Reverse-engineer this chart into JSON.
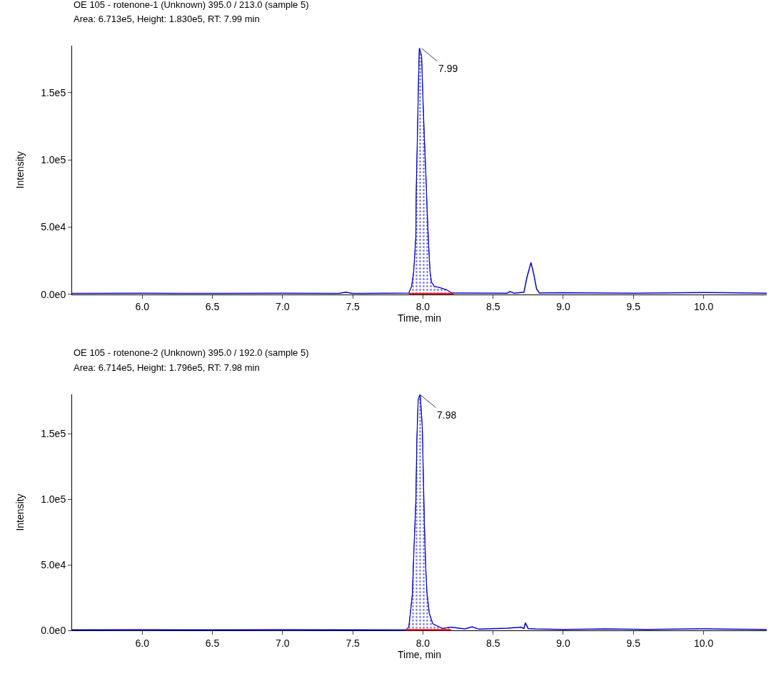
{
  "chart_data": [
    {
      "type": "line",
      "title": "OE 105 - rotenone-1 (Unknown) 395.0 / 213.0 (sample 5)",
      "subtitle": "Area: 6.713e5, Height: 1.830e5, RT: 7.99 min",
      "xlabel": "Time, min",
      "ylabel": "Intensity",
      "xlim": [
        5.5,
        10.45
      ],
      "ylim": [
        0,
        185000
      ],
      "xticks": [
        {
          "value": 6,
          "label": "6.0"
        },
        {
          "value": 6.5,
          "label": "6.5"
        },
        {
          "value": 7,
          "label": "7.0"
        },
        {
          "value": 7.5,
          "label": "7.5"
        },
        {
          "value": 8,
          "label": "8.0"
        },
        {
          "value": 8.5,
          "label": "8.5"
        },
        {
          "value": 9,
          "label": "9.0"
        },
        {
          "value": 9.5,
          "label": "9.5"
        },
        {
          "value": 10,
          "label": "10.0"
        }
      ],
      "yticks": [
        {
          "value": 0,
          "label": "0.0e0"
        },
        {
          "value": 50000,
          "label": "5.0e4"
        },
        {
          "value": 100000,
          "label": "1.0e5"
        },
        {
          "value": 150000,
          "label": "1.5e5"
        }
      ],
      "series": [
        {
          "color": "#0000cc",
          "x": [
            5.5,
            6.0,
            6.5,
            7.0,
            7.4,
            7.45,
            7.5,
            7.9,
            7.92,
            7.935,
            7.95,
            7.953,
            7.962,
            7.97,
            7.975,
            7.99,
            8.0,
            8.01,
            8.02,
            8.03,
            8.04,
            8.05,
            8.06,
            8.08,
            8.12,
            8.17,
            8.2,
            8.23,
            8.3,
            8.6,
            8.62,
            8.65,
            8.72,
            8.74,
            8.77,
            8.79,
            8.81,
            8.83,
            9.0,
            9.5,
            10.0,
            10.45
          ],
          "values": [
            600,
            700,
            600,
            700,
            600,
            1500,
            600,
            900,
            5800,
            16800,
            42300,
            76500,
            120000,
            163000,
            183000,
            177000,
            144000,
            115000,
            90000,
            61000,
            37000,
            16800,
            9200,
            5800,
            4900,
            3200,
            1200,
            900,
            900,
            800,
            2000,
            800,
            1500,
            12000,
            23600,
            15000,
            4000,
            900,
            1200,
            800,
            1300,
            800
          ]
        },
        {
          "type": "area",
          "color": "#0000cc",
          "x": [
            7.9,
            7.92,
            7.935,
            7.95,
            7.953,
            7.962,
            7.97,
            7.975,
            7.99,
            8.0,
            8.01,
            8.02,
            8.03,
            8.04,
            8.05,
            8.06,
            8.08,
            8.12,
            8.17,
            8.2,
            8.22
          ],
          "values": [
            900,
            5800,
            16800,
            42300,
            76500,
            120000,
            163000,
            183000,
            177000,
            144000,
            115000,
            90000,
            61000,
            37000,
            16800,
            9200,
            5800,
            4900,
            3200,
            1200,
            900
          ]
        },
        {
          "color": "#ff0000",
          "x": [
            7.9,
            8.06,
            8.22
          ],
          "values": [
            0,
            0,
            0
          ]
        }
      ],
      "annotations": [
        {
          "text": "7.99",
          "x": 7.99,
          "y": 183000
        }
      ]
    },
    {
      "type": "line",
      "title": "OE 105 - rotenone-2 (Unknown) 395.0 / 192.0 (sample 5)",
      "subtitle": "Area: 6.714e5, Height: 1.796e5, RT: 7.98 min",
      "xlabel": "Time, min",
      "ylabel": "Intensity",
      "xlim": [
        5.5,
        10.45
      ],
      "ylim": [
        0,
        180000
      ],
      "xticks": [
        {
          "value": 6,
          "label": "6.0"
        },
        {
          "value": 6.5,
          "label": "6.5"
        },
        {
          "value": 7,
          "label": "7.0"
        },
        {
          "value": 7.5,
          "label": "7.5"
        },
        {
          "value": 8,
          "label": "8.0"
        },
        {
          "value": 8.5,
          "label": "8.5"
        },
        {
          "value": 9,
          "label": "9.0"
        },
        {
          "value": 9.5,
          "label": "9.5"
        },
        {
          "value": 10,
          "label": "10.0"
        }
      ],
      "yticks": [
        {
          "value": 0,
          "label": "0.0e0"
        },
        {
          "value": 50000,
          "label": "5.0e4"
        },
        {
          "value": 100000,
          "label": "1.0e5"
        },
        {
          "value": 150000,
          "label": "1.5e5"
        }
      ],
      "series": [
        {
          "color": "#0000cc",
          "x": [
            5.5,
            6.0,
            6.5,
            7.0,
            7.5,
            7.88,
            7.9,
            7.925,
            7.938,
            7.95,
            7.958,
            7.967,
            7.98,
            7.995,
            8.002,
            8.01,
            8.019,
            8.028,
            8.045,
            8.07,
            8.12,
            8.14,
            8.2,
            8.3,
            8.35,
            8.4,
            8.6,
            8.7,
            8.72,
            8.73,
            8.75,
            8.8,
            9.0,
            9.3,
            9.6,
            10.0,
            10.45
          ],
          "values": [
            500,
            600,
            500,
            600,
            500,
            600,
            2500,
            27000,
            65000,
            98000,
            147000,
            176000,
            179600,
            155000,
            119000,
            81000,
            49000,
            29000,
            13000,
            5000,
            2500,
            1500,
            2500,
            1200,
            2800,
            1000,
            1800,
            2500,
            1500,
            5900,
            1500,
            1200,
            800,
            1200,
            800,
            1300,
            800
          ]
        },
        {
          "type": "area",
          "color": "#0000cc",
          "x": [
            7.88,
            7.9,
            7.925,
            7.938,
            7.95,
            7.958,
            7.967,
            7.98,
            7.995,
            8.002,
            8.01,
            8.019,
            8.028,
            8.045,
            8.07,
            8.12,
            8.14,
            8.2
          ],
          "values": [
            600,
            2500,
            27000,
            65000,
            98000,
            147000,
            176000,
            179600,
            155000,
            119000,
            81000,
            49000,
            29000,
            13000,
            5000,
            2500,
            1500,
            2500
          ]
        },
        {
          "color": "#ff0000",
          "x": [
            7.88,
            8.04,
            8.2
          ],
          "values": [
            0,
            0,
            0
          ]
        }
      ],
      "annotations": [
        {
          "text": "7.98",
          "x": 7.98,
          "y": 179600
        }
      ]
    }
  ]
}
